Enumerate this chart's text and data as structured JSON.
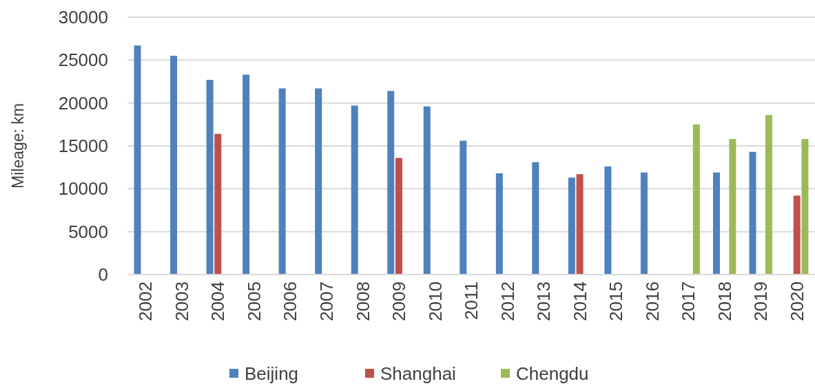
{
  "chart_data": {
    "type": "bar",
    "ylabel": "Mileage: km",
    "categories": [
      "2002",
      "2003",
      "2004",
      "2005",
      "2006",
      "2007",
      "2008",
      "2009",
      "2010",
      "2011",
      "2012",
      "2013",
      "2014",
      "2015",
      "2016",
      "2017",
      "2018",
      "2019",
      "2020"
    ],
    "series": [
      {
        "name": "Beijing",
        "color": "#4f81bd",
        "values": [
          26700,
          25500,
          22700,
          23300,
          21700,
          21700,
          19700,
          21400,
          19600,
          15600,
          11800,
          13100,
          11300,
          12600,
          11900,
          null,
          11900,
          14300,
          null
        ]
      },
      {
        "name": "Shanghai",
        "color": "#c0504d",
        "values": [
          null,
          null,
          16400,
          null,
          null,
          null,
          null,
          13600,
          null,
          null,
          null,
          null,
          11700,
          null,
          null,
          null,
          null,
          null,
          9200
        ]
      },
      {
        "name": "Chengdu",
        "color": "#9bbb59",
        "values": [
          null,
          null,
          null,
          null,
          null,
          null,
          null,
          null,
          null,
          null,
          null,
          null,
          null,
          null,
          null,
          17500,
          15800,
          18600,
          15800
        ]
      }
    ],
    "ylim": [
      0,
      30000
    ],
    "yticks": [
      0,
      5000,
      10000,
      15000,
      20000,
      25000,
      30000
    ],
    "grid": "y",
    "legend": "bottom"
  }
}
